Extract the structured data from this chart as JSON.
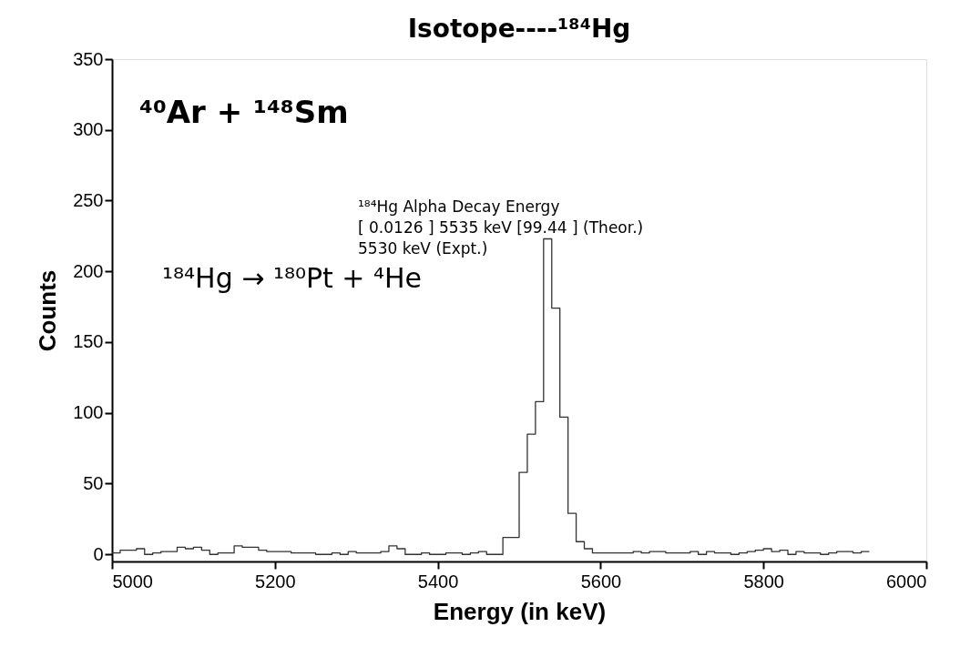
{
  "chart_data": {
    "type": "histogram",
    "title": "Isotope----¹⁸⁴Hg",
    "xlabel": "Energy (in keV)",
    "ylabel": "Counts",
    "bins": [
      5000,
      5010,
      5020,
      5030,
      5040,
      5050,
      5060,
      5070,
      5080,
      5090,
      5100,
      5110,
      5120,
      5130,
      5140,
      5150,
      5160,
      5170,
      5180,
      5190,
      5200,
      5210,
      5220,
      5230,
      5240,
      5250,
      5260,
      5270,
      5280,
      5290,
      5300,
      5310,
      5320,
      5330,
      5340,
      5350,
      5360,
      5370,
      5380,
      5390,
      5400,
      5410,
      5420,
      5430,
      5440,
      5450,
      5460,
      5470,
      5480,
      5490,
      5500,
      5510,
      5520,
      5530,
      5540,
      5550,
      5560,
      5570,
      5580,
      5590,
      5600,
      5610,
      5620,
      5630,
      5640,
      5650,
      5660,
      5670,
      5680,
      5690,
      5700,
      5710,
      5720,
      5730,
      5740,
      5750,
      5760,
      5770,
      5780,
      5790,
      5800,
      5810,
      5820,
      5830,
      5840,
      5850,
      5860,
      5870,
      5880,
      5890,
      5900,
      5910,
      5920,
      5930
    ],
    "values": [
      1,
      3,
      3,
      4,
      0,
      1,
      2,
      2,
      5,
      4,
      5,
      3,
      0,
      1,
      1,
      6,
      5,
      5,
      3,
      2,
      2,
      2,
      1,
      1,
      1,
      0,
      0,
      1,
      0,
      2,
      1,
      1,
      1,
      2,
      6,
      4,
      0,
      0,
      1,
      0,
      0,
      1,
      1,
      0,
      1,
      2,
      0,
      0,
      12,
      12,
      58,
      85,
      108,
      223,
      174,
      97,
      29,
      9,
      4,
      1,
      1,
      1,
      1,
      1,
      2,
      1,
      2,
      2,
      1,
      1,
      1,
      2,
      0,
      2,
      1,
      1,
      0,
      1,
      2,
      3,
      4,
      2,
      3,
      0,
      2,
      1,
      1,
      0,
      1,
      2,
      2,
      1,
      2
    ],
    "color": "#333333",
    "xlim": [
      5000,
      6000
    ],
    "xticks": [
      5000,
      5200,
      5400,
      5600,
      5800,
      6000
    ],
    "ylim": [
      -5,
      350
    ],
    "yticks": [
      0,
      50,
      100,
      150,
      200,
      250,
      300,
      350
    ],
    "grid": false,
    "annotations": [
      "⁴⁰Ar + ¹⁴⁸Sm",
      "¹⁸⁴Hg Alpha Decay Energy",
      "[ 0.0126 ]   5535 keV [99.44 ] (Theor.)",
      "5530 keV (Expt.)",
      "¹⁸⁴Hg → ¹⁸⁰Pt + ⁴He"
    ]
  }
}
